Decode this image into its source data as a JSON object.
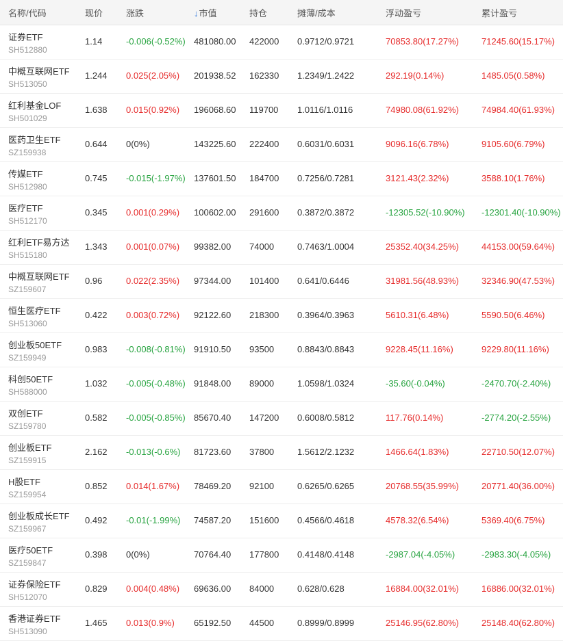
{
  "header": {
    "name_code": "名称/代码",
    "price": "现价",
    "change": "涨跌",
    "sort_arrow": "↓",
    "market_value": "市值",
    "holdings": "持仓",
    "cost": "摊薄/成本",
    "floating_pl": "浮动盈亏",
    "total_pl": "累计盈亏"
  },
  "colors": {
    "up": "#e62b2b",
    "down": "#26a33f",
    "sort_icon": "#3b7ddd"
  },
  "rows": [
    {
      "name": "证券ETF",
      "code": "SH512880",
      "price": "1.14",
      "change": "-0.006(-0.52%)",
      "change_dir": "down",
      "market_value": "481080.00",
      "holdings": "422000",
      "cost": "0.9712/0.9721",
      "floating_pl": "70853.80(17.27%)",
      "floating_dir": "up",
      "total_pl": "71245.60(15.17%)",
      "total_dir": "up"
    },
    {
      "name": "中概互联网ETF",
      "code": "SH513050",
      "price": "1.244",
      "change": "0.025(2.05%)",
      "change_dir": "up",
      "market_value": "201938.52",
      "holdings": "162330",
      "cost": "1.2349/1.2422",
      "floating_pl": "292.19(0.14%)",
      "floating_dir": "up",
      "total_pl": "1485.05(0.58%)",
      "total_dir": "up"
    },
    {
      "name": "红利基金LOF",
      "code": "SH501029",
      "price": "1.638",
      "change": "0.015(0.92%)",
      "change_dir": "up",
      "market_value": "196068.60",
      "holdings": "119700",
      "cost": "1.0116/1.0116",
      "floating_pl": "74980.08(61.92%)",
      "floating_dir": "up",
      "total_pl": "74984.40(61.93%)",
      "total_dir": "up"
    },
    {
      "name": "医药卫生ETF",
      "code": "SZ159938",
      "price": "0.644",
      "change": "0(0%)",
      "change_dir": "flat",
      "market_value": "143225.60",
      "holdings": "222400",
      "cost": "0.6031/0.6031",
      "floating_pl": "9096.16(6.78%)",
      "floating_dir": "up",
      "total_pl": "9105.60(6.79%)",
      "total_dir": "up"
    },
    {
      "name": "传媒ETF",
      "code": "SH512980",
      "price": "0.745",
      "change": "-0.015(-1.97%)",
      "change_dir": "down",
      "market_value": "137601.50",
      "holdings": "184700",
      "cost": "0.7256/0.7281",
      "floating_pl": "3121.43(2.32%)",
      "floating_dir": "up",
      "total_pl": "3588.10(1.76%)",
      "total_dir": "up"
    },
    {
      "name": "医疗ETF",
      "code": "SH512170",
      "price": "0.345",
      "change": "0.001(0.29%)",
      "change_dir": "up",
      "market_value": "100602.00",
      "holdings": "291600",
      "cost": "0.3872/0.3872",
      "floating_pl": "-12305.52(-10.90%)",
      "floating_dir": "down",
      "total_pl": "-12301.40(-10.90%)",
      "total_dir": "down"
    },
    {
      "name": "红利ETF易方达",
      "code": "SH515180",
      "price": "1.343",
      "change": "0.001(0.07%)",
      "change_dir": "up",
      "market_value": "99382.00",
      "holdings": "74000",
      "cost": "0.7463/1.0004",
      "floating_pl": "25352.40(34.25%)",
      "floating_dir": "up",
      "total_pl": "44153.00(59.64%)",
      "total_dir": "up"
    },
    {
      "name": "中概互联网ETF",
      "code": "SZ159607",
      "price": "0.96",
      "change": "0.022(2.35%)",
      "change_dir": "up",
      "market_value": "97344.00",
      "holdings": "101400",
      "cost": "0.641/0.6446",
      "floating_pl": "31981.56(48.93%)",
      "floating_dir": "up",
      "total_pl": "32346.90(47.53%)",
      "total_dir": "up"
    },
    {
      "name": "恒生医疗ETF",
      "code": "SH513060",
      "price": "0.422",
      "change": "0.003(0.72%)",
      "change_dir": "up",
      "market_value": "92122.60",
      "holdings": "218300",
      "cost": "0.3964/0.3963",
      "floating_pl": "5610.31(6.48%)",
      "floating_dir": "up",
      "total_pl": "5590.50(6.46%)",
      "total_dir": "up"
    },
    {
      "name": "创业板50ETF",
      "code": "SZ159949",
      "price": "0.983",
      "change": "-0.008(-0.81%)",
      "change_dir": "down",
      "market_value": "91910.50",
      "holdings": "93500",
      "cost": "0.8843/0.8843",
      "floating_pl": "9228.45(11.16%)",
      "floating_dir": "up",
      "total_pl": "9229.80(11.16%)",
      "total_dir": "up"
    },
    {
      "name": "科创50ETF",
      "code": "SH588000",
      "price": "1.032",
      "change": "-0.005(-0.48%)",
      "change_dir": "down",
      "market_value": "91848.00",
      "holdings": "89000",
      "cost": "1.0598/1.0324",
      "floating_pl": "-35.60(-0.04%)",
      "floating_dir": "down",
      "total_pl": "-2470.70(-2.40%)",
      "total_dir": "down"
    },
    {
      "name": "双创ETF",
      "code": "SZ159780",
      "price": "0.582",
      "change": "-0.005(-0.85%)",
      "change_dir": "down",
      "market_value": "85670.40",
      "holdings": "147200",
      "cost": "0.6008/0.5812",
      "floating_pl": "117.76(0.14%)",
      "floating_dir": "up",
      "total_pl": "-2774.20(-2.55%)",
      "total_dir": "down"
    },
    {
      "name": "创业板ETF",
      "code": "SZ159915",
      "price": "2.162",
      "change": "-0.013(-0.6%)",
      "change_dir": "down",
      "market_value": "81723.60",
      "holdings": "37800",
      "cost": "1.5612/2.1232",
      "floating_pl": "1466.64(1.83%)",
      "floating_dir": "up",
      "total_pl": "22710.50(12.07%)",
      "total_dir": "up"
    },
    {
      "name": "H股ETF",
      "code": "SZ159954",
      "price": "0.852",
      "change": "0.014(1.67%)",
      "change_dir": "up",
      "market_value": "78469.20",
      "holdings": "92100",
      "cost": "0.6265/0.6265",
      "floating_pl": "20768.55(35.99%)",
      "floating_dir": "up",
      "total_pl": "20771.40(36.00%)",
      "total_dir": "up"
    },
    {
      "name": "创业板成长ETF",
      "code": "SZ159967",
      "price": "0.492",
      "change": "-0.01(-1.99%)",
      "change_dir": "down",
      "market_value": "74587.20",
      "holdings": "151600",
      "cost": "0.4566/0.4618",
      "floating_pl": "4578.32(6.54%)",
      "floating_dir": "up",
      "total_pl": "5369.40(6.75%)",
      "total_dir": "up"
    },
    {
      "name": "医疗50ETF",
      "code": "SZ159847",
      "price": "0.398",
      "change": "0(0%)",
      "change_dir": "flat",
      "market_value": "70764.40",
      "holdings": "177800",
      "cost": "0.4148/0.4148",
      "floating_pl": "-2987.04(-4.05%)",
      "floating_dir": "down",
      "total_pl": "-2983.30(-4.05%)",
      "total_dir": "down"
    },
    {
      "name": "证券保险ETF",
      "code": "SH512070",
      "price": "0.829",
      "change": "0.004(0.48%)",
      "change_dir": "up",
      "market_value": "69636.00",
      "holdings": "84000",
      "cost": "0.628/0.628",
      "floating_pl": "16884.00(32.01%)",
      "floating_dir": "up",
      "total_pl": "16886.00(32.01%)",
      "total_dir": "up"
    },
    {
      "name": "香港证券ETF",
      "code": "SH513090",
      "price": "1.465",
      "change": "0.013(0.9%)",
      "change_dir": "up",
      "market_value": "65192.50",
      "holdings": "44500",
      "cost": "0.8999/0.8999",
      "floating_pl": "25146.95(62.80%)",
      "floating_dir": "up",
      "total_pl": "25148.40(62.80%)",
      "total_dir": "up"
    }
  ]
}
